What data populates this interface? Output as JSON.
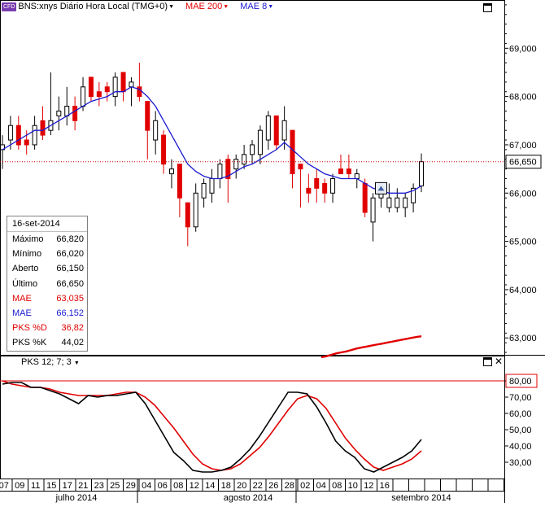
{
  "header": {
    "badge": "CFD",
    "symbol_title": "BNS:xnys Diário Hora Local (TMG+0)",
    "indicators": [
      {
        "label": "MAE 200",
        "color": "#e00000"
      },
      {
        "label": "MAE 8",
        "color": "#1a1ad0"
      }
    ]
  },
  "colors": {
    "up_candle": "#ffffff",
    "down_candle": "#e00000",
    "mae8": "#1a1ad0",
    "mae200": "#e00000",
    "pks_d": "#e00000",
    "pks_k": "#000000",
    "last_price_line": "#c00000"
  },
  "info_panel": {
    "date": "16-set-2014",
    "rows": [
      {
        "label": "Máximo",
        "value": "66,820",
        "color": "#000000"
      },
      {
        "label": "Mínimo",
        "value": "66,020",
        "color": "#000000"
      },
      {
        "label": "Aberto",
        "value": "66,150",
        "color": "#000000"
      },
      {
        "label": "Último",
        "value": "66,650",
        "color": "#000000"
      },
      {
        "label": "MAE",
        "value": "63,035",
        "color": "#e00000"
      },
      {
        "label": "MAE",
        "value": "66,152",
        "color": "#1a1ad0"
      },
      {
        "label": "PKS %D",
        "value": "36,82",
        "color": "#e00000"
      },
      {
        "label": "PKS %K",
        "value": "44,02",
        "color": "#000000"
      }
    ]
  },
  "oscillator": {
    "title": "PKS 12; 7; 3",
    "overbought_label": "80,00"
  },
  "chart_data": [
    {
      "type": "candlestick",
      "last_price_label": "66,650",
      "y_ticks": [
        "63,000",
        "64,000",
        "65,000",
        "66,000",
        "67,000",
        "68,000",
        "69,000"
      ],
      "ylim": [
        62.65,
        70.0
      ],
      "x_day_labels": [
        "07",
        "09",
        "11",
        "15",
        "17",
        "21",
        "23",
        "25",
        "29",
        "04",
        "06",
        "08",
        "12",
        "14",
        "18",
        "20",
        "22",
        "26",
        "28",
        "02",
        "04",
        "08",
        "10",
        "12",
        "16"
      ],
      "x_month_labels": [
        "julho 2014",
        "agosto 2014",
        "setembro 2014"
      ],
      "candles": [
        {
          "o": 66.9,
          "h": 67.2,
          "l": 66.5,
          "c": 67.0
        },
        {
          "o": 67.1,
          "h": 67.6,
          "l": 66.9,
          "c": 67.4
        },
        {
          "o": 67.4,
          "h": 67.6,
          "l": 66.9,
          "c": 67.0
        },
        {
          "o": 67.1,
          "h": 67.3,
          "l": 66.8,
          "c": 67.0
        },
        {
          "o": 67.0,
          "h": 67.6,
          "l": 66.9,
          "c": 67.4
        },
        {
          "o": 67.5,
          "h": 67.8,
          "l": 67.1,
          "c": 67.2
        },
        {
          "o": 67.3,
          "h": 68.5,
          "l": 67.2,
          "c": 67.5
        },
        {
          "o": 67.6,
          "h": 68.0,
          "l": 67.3,
          "c": 67.7
        },
        {
          "o": 67.6,
          "h": 68.2,
          "l": 67.4,
          "c": 67.8
        },
        {
          "o": 67.8,
          "h": 68.0,
          "l": 67.3,
          "c": 67.5
        },
        {
          "o": 67.8,
          "h": 68.4,
          "l": 67.7,
          "c": 68.2
        },
        {
          "o": 68.4,
          "h": 68.4,
          "l": 67.9,
          "c": 68.0
        },
        {
          "o": 68.1,
          "h": 68.3,
          "l": 67.8,
          "c": 68.0
        },
        {
          "o": 68.2,
          "h": 68.3,
          "l": 67.9,
          "c": 68.1
        },
        {
          "o": 68.0,
          "h": 68.5,
          "l": 67.8,
          "c": 68.4
        },
        {
          "o": 68.5,
          "h": 68.5,
          "l": 67.9,
          "c": 68.1
        },
        {
          "o": 68.2,
          "h": 68.4,
          "l": 67.8,
          "c": 68.3
        },
        {
          "o": 68.2,
          "h": 68.7,
          "l": 67.9,
          "c": 68.0
        },
        {
          "o": 67.9,
          "h": 67.9,
          "l": 66.7,
          "c": 67.3
        },
        {
          "o": 67.1,
          "h": 67.7,
          "l": 66.8,
          "c": 67.5
        },
        {
          "o": 67.2,
          "h": 67.3,
          "l": 66.4,
          "c": 66.6
        },
        {
          "o": 66.4,
          "h": 66.7,
          "l": 66.1,
          "c": 66.5
        },
        {
          "o": 66.6,
          "h": 66.6,
          "l": 65.5,
          "c": 65.9
        },
        {
          "o": 65.8,
          "h": 65.8,
          "l": 64.9,
          "c": 65.3
        },
        {
          "o": 65.3,
          "h": 66.2,
          "l": 65.2,
          "c": 66.0
        },
        {
          "o": 65.9,
          "h": 66.3,
          "l": 65.7,
          "c": 66.2
        },
        {
          "o": 66.0,
          "h": 66.5,
          "l": 65.8,
          "c": 66.3
        },
        {
          "o": 66.3,
          "h": 66.7,
          "l": 66.1,
          "c": 66.6
        },
        {
          "o": 66.7,
          "h": 66.8,
          "l": 65.8,
          "c": 66.3
        },
        {
          "o": 66.5,
          "h": 66.8,
          "l": 66.3,
          "c": 66.7
        },
        {
          "o": 66.6,
          "h": 67.0,
          "l": 66.5,
          "c": 66.8
        },
        {
          "o": 66.8,
          "h": 67.1,
          "l": 66.6,
          "c": 67.0
        },
        {
          "o": 66.8,
          "h": 67.4,
          "l": 66.6,
          "c": 67.3
        },
        {
          "o": 67.1,
          "h": 67.7,
          "l": 66.9,
          "c": 67.6
        },
        {
          "o": 67.6,
          "h": 67.6,
          "l": 66.9,
          "c": 67.0
        },
        {
          "o": 67.1,
          "h": 67.8,
          "l": 66.9,
          "c": 67.5
        },
        {
          "o": 67.3,
          "h": 67.3,
          "l": 66.1,
          "c": 66.4
        },
        {
          "o": 66.6,
          "h": 66.6,
          "l": 65.7,
          "c": 66.5
        },
        {
          "o": 66.1,
          "h": 66.4,
          "l": 65.8,
          "c": 66.0
        },
        {
          "o": 66.3,
          "h": 66.5,
          "l": 65.8,
          "c": 66.1
        },
        {
          "o": 66.2,
          "h": 66.3,
          "l": 65.8,
          "c": 66.0
        },
        {
          "o": 66.0,
          "h": 66.4,
          "l": 65.8,
          "c": 66.3
        },
        {
          "o": 66.5,
          "h": 66.8,
          "l": 66.4,
          "c": 66.4
        },
        {
          "o": 66.5,
          "h": 66.8,
          "l": 66.3,
          "c": 66.4
        },
        {
          "o": 66.3,
          "h": 66.5,
          "l": 66.1,
          "c": 66.4
        },
        {
          "o": 66.2,
          "h": 66.3,
          "l": 65.5,
          "c": 65.6
        },
        {
          "o": 65.4,
          "h": 66.0,
          "l": 65.0,
          "c": 65.9
        },
        {
          "o": 65.9,
          "h": 66.2,
          "l": 65.7,
          "c": 66.1
        },
        {
          "o": 65.7,
          "h": 66.2,
          "l": 65.6,
          "c": 65.9
        },
        {
          "o": 65.7,
          "h": 66.1,
          "l": 65.6,
          "c": 65.9
        },
        {
          "o": 65.7,
          "h": 66.0,
          "l": 65.5,
          "c": 65.9
        },
        {
          "o": 65.8,
          "h": 66.2,
          "l": 65.6,
          "c": 66.1
        },
        {
          "o": 66.15,
          "h": 66.82,
          "l": 66.02,
          "c": 66.65
        }
      ],
      "mae8": [
        66.9,
        67.0,
        67.1,
        67.2,
        67.3,
        67.3,
        67.4,
        67.5,
        67.6,
        67.7,
        67.8,
        67.9,
        67.95,
        68.0,
        68.1,
        68.1,
        68.2,
        68.15,
        68.0,
        67.8,
        67.5,
        67.2,
        66.9,
        66.6,
        66.45,
        66.35,
        66.3,
        66.3,
        66.35,
        66.45,
        66.55,
        66.6,
        66.7,
        66.8,
        66.9,
        67.05,
        66.9,
        66.75,
        66.6,
        66.5,
        66.4,
        66.35,
        66.3,
        66.3,
        66.3,
        66.2,
        66.1,
        66.05,
        66.0,
        66.0,
        66.0,
        66.05,
        66.15
      ],
      "mae200": [
        62.6,
        62.62,
        62.65,
        62.68,
        62.7,
        62.72,
        62.75,
        62.78,
        62.8,
        62.82,
        62.84,
        62.86,
        62.88,
        62.9,
        62.92,
        62.94,
        62.96,
        62.98,
        63.0,
        63.02,
        63.035
      ]
    },
    {
      "type": "line",
      "ylim": [
        20,
        86
      ],
      "y_ticks": [
        "30,00",
        "40,00",
        "50,00",
        "60,00",
        "70,00",
        "80,00"
      ],
      "series": [
        {
          "name": "PKS %K",
          "values": [
            78,
            79,
            79,
            76,
            76,
            74,
            72,
            69,
            66,
            71,
            70,
            71,
            71,
            72,
            73,
            66,
            56,
            46,
            36,
            31,
            25,
            24,
            24,
            25,
            27,
            32,
            38,
            46,
            55,
            64,
            73,
            73,
            72,
            64,
            54,
            43,
            37,
            33,
            26,
            24,
            27,
            30,
            33,
            37,
            44
          ]
        },
        {
          "name": "PKS %D",
          "values": [
            80,
            78,
            77,
            76,
            76,
            75,
            73,
            72,
            71,
            71,
            71,
            71,
            72,
            73,
            73,
            70,
            65,
            58,
            51,
            43,
            35,
            29,
            26,
            25,
            26,
            29,
            34,
            39,
            46,
            54,
            62,
            69,
            71,
            69,
            63,
            54,
            45,
            38,
            32,
            27,
            25,
            27,
            29,
            32,
            37
          ]
        }
      ]
    }
  ]
}
